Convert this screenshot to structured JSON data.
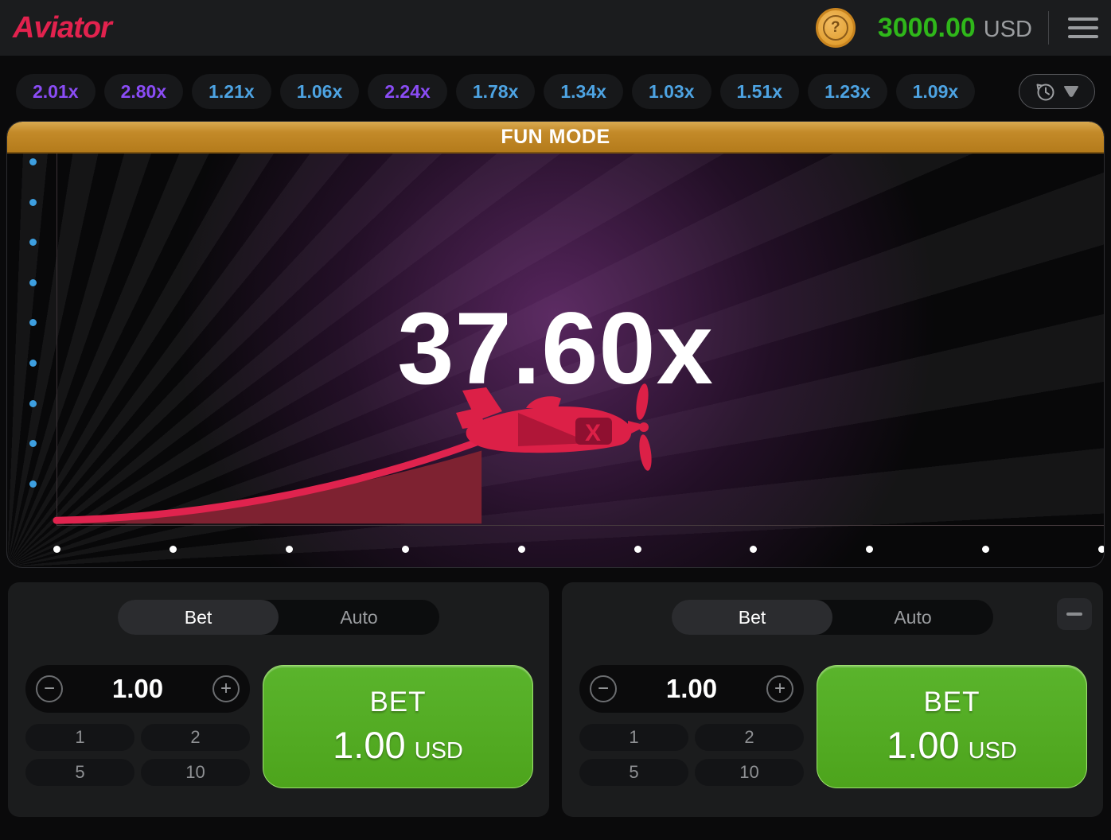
{
  "header": {
    "logo_text": "Aviator",
    "coin_symbol": "?",
    "balance_value": "3000.00",
    "balance_currency": "USD"
  },
  "round_history": {
    "items": [
      {
        "label": "2.01x",
        "tier": "purple"
      },
      {
        "label": "2.80x",
        "tier": "purple"
      },
      {
        "label": "1.21x",
        "tier": "blue"
      },
      {
        "label": "1.06x",
        "tier": "blue"
      },
      {
        "label": "2.24x",
        "tier": "purple"
      },
      {
        "label": "1.78x",
        "tier": "blue"
      },
      {
        "label": "1.34x",
        "tier": "blue"
      },
      {
        "label": "1.03x",
        "tier": "blue"
      },
      {
        "label": "1.51x",
        "tier": "blue"
      },
      {
        "label": "1.23x",
        "tier": "blue"
      },
      {
        "label": "1.09x",
        "tier": "blue"
      }
    ],
    "tier_colors": {
      "blue": "#4da3e2",
      "purple": "#8a4cf5"
    }
  },
  "game": {
    "mode_banner": "FUN MODE",
    "current_multiplier": "37.60x",
    "curve_color": "#e0234e",
    "curve_fill_color": "#7e2231",
    "plane_color": "#dc2047",
    "axis": {
      "left_dot_count": 9,
      "bottom_dot_count": 10,
      "left_dot_color": "#3d9fe0",
      "bottom_dot_color": "#ffffff"
    }
  },
  "bet_panels": [
    {
      "tabs": {
        "bet": "Bet",
        "auto": "Auto",
        "active": "Bet"
      },
      "amount": {
        "value": "1.00"
      },
      "quick_amounts": [
        "1",
        "2",
        "5",
        "10"
      ],
      "bet_button": {
        "line1": "BET",
        "amount": "1.00",
        "currency": "USD"
      }
    },
    {
      "tabs": {
        "bet": "Bet",
        "auto": "Auto",
        "active": "Bet"
      },
      "amount": {
        "value": "1.00"
      },
      "quick_amounts": [
        "1",
        "2",
        "5",
        "10"
      ],
      "bet_button": {
        "line1": "BET",
        "amount": "1.00",
        "currency": "USD"
      }
    }
  ],
  "colors": {
    "logo_red": "#e2224e",
    "balance_green": "#2fb71a",
    "banner_orange": "#c38a29",
    "bet_green": "#4da41c"
  }
}
